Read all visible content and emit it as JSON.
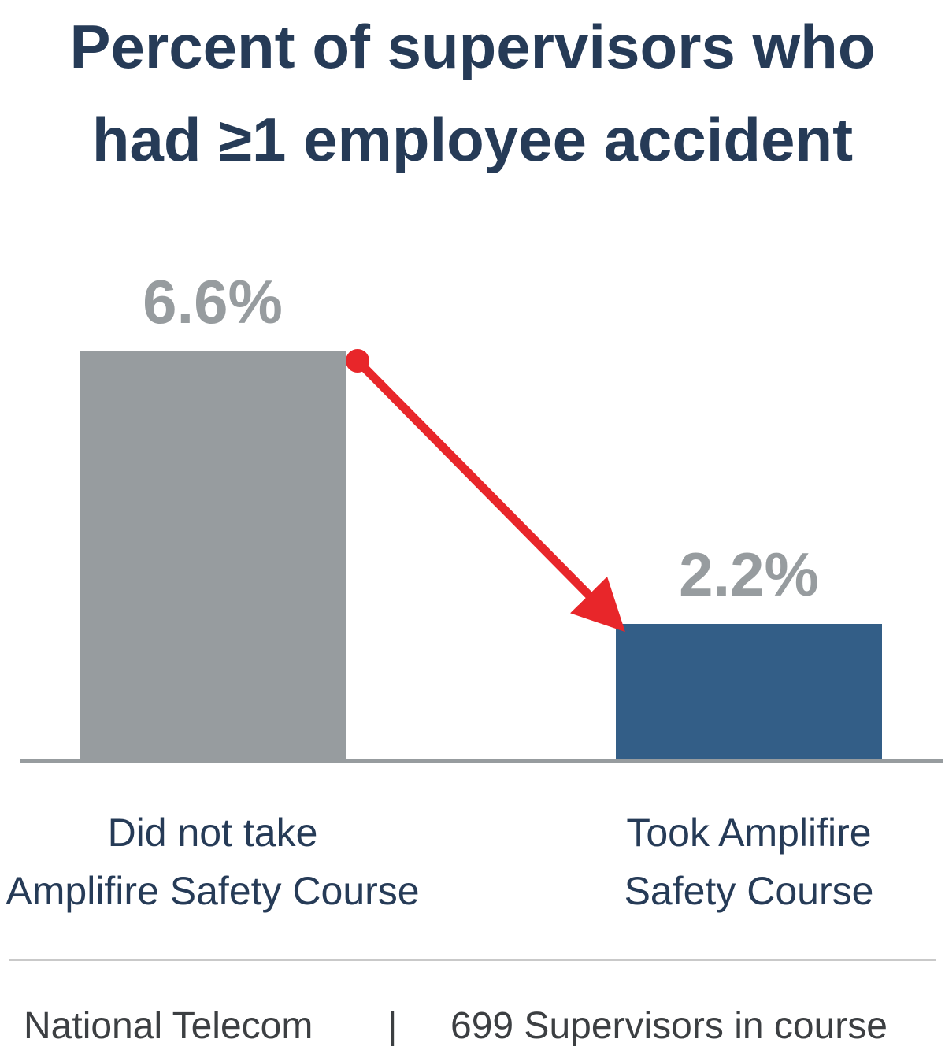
{
  "chart_data": {
    "type": "bar",
    "title_lines": [
      "Percent of supervisors who",
      "had ≥1 employee accident"
    ],
    "categories": [
      [
        "Did not take",
        "Amplifire Safety Course"
      ],
      [
        "Took Amplifire",
        "Safety Course"
      ]
    ],
    "values": [
      6.6,
      2.2
    ],
    "value_labels": [
      "6.6%",
      "2.2%"
    ],
    "ylim": [
      0,
      6.6
    ],
    "grid": false,
    "legend": "none",
    "colors": [
      "#979c9f",
      "#335e87"
    ],
    "baseline_color": "#979c9f",
    "annotation": {
      "type": "arrow",
      "from_category": 0,
      "to_category": 1,
      "color": "#e8262a"
    }
  },
  "footer": {
    "source": "National Telecom",
    "separator": "|",
    "sample": "699 Supervisors in course"
  }
}
